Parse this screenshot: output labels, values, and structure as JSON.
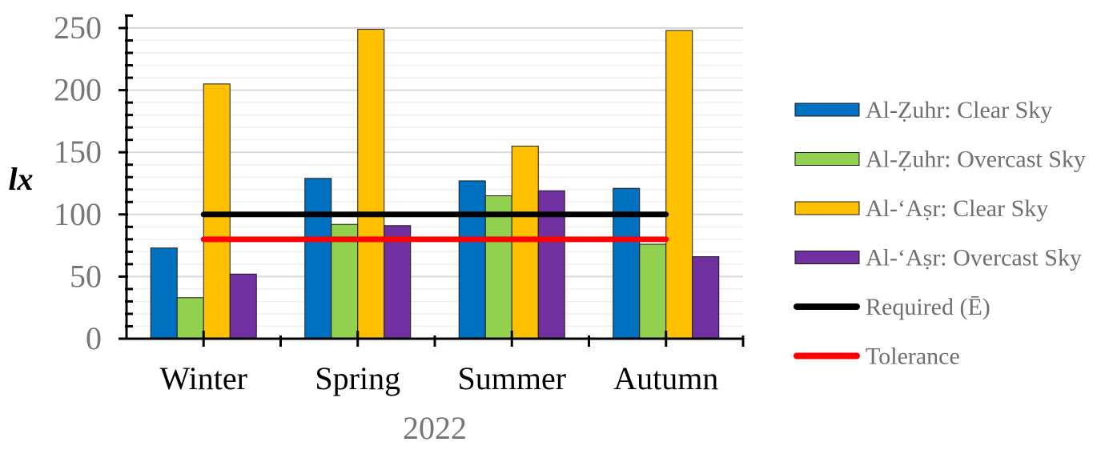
{
  "chart_data": {
    "type": "bar",
    "categories": [
      "Winter",
      "Spring",
      "Summer",
      "Autumn"
    ],
    "xlabel": "2022",
    "ylabel": "lx",
    "ylim": [
      0,
      250
    ],
    "yticks": [
      0,
      50,
      100,
      150,
      200,
      250
    ],
    "grid": true,
    "legend_position": "right",
    "series": [
      {
        "name": "Al-Ẓuhr: Clear Sky",
        "color": "#0070C0",
        "values": [
          73,
          129,
          127,
          121
        ]
      },
      {
        "name": "Al-Ẓuhr: Overcast Sky",
        "color": "#92D050",
        "values": [
          33,
          92,
          115,
          76
        ]
      },
      {
        "name": "Al-‘Aṣr: Clear Sky",
        "color": "#FFC000",
        "values": [
          205,
          249,
          155,
          248
        ]
      },
      {
        "name": "Al-‘Aṣr: Overcast Sky",
        "color": "#7030A0",
        "values": [
          52,
          91,
          119,
          66
        ]
      }
    ],
    "lines": [
      {
        "name": "Required (Ē)",
        "color": "#000000",
        "value": 100
      },
      {
        "name": "Tolerance",
        "color": "#FF0000",
        "value": 80
      }
    ]
  }
}
